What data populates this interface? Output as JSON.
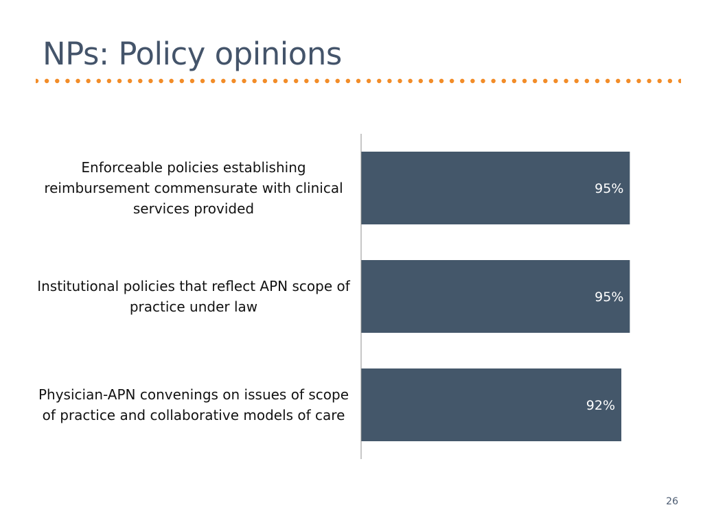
{
  "slide": {
    "title": "NPs: Policy opinions",
    "page_number": "26"
  },
  "colors": {
    "title": "#44546a",
    "accent_dots": "#f28c28",
    "bar": "#44576a",
    "bar_label": "#ffffff",
    "axis": "#8c8c8c"
  },
  "chart_data": {
    "type": "bar",
    "orientation": "horizontal",
    "categories": [
      "Enforceable policies establishing reimbursement commensurate with clinical services provided",
      "Institutional policies that reflect APN scope of practice under law",
      "Physician-APN convenings on issues of scope of practice and collaborative models of care"
    ],
    "values": [
      95,
      95,
      92
    ],
    "value_labels": [
      "95%",
      "95%",
      "92%"
    ],
    "xlim": [
      0,
      100
    ],
    "grid": false,
    "legend": "none"
  }
}
